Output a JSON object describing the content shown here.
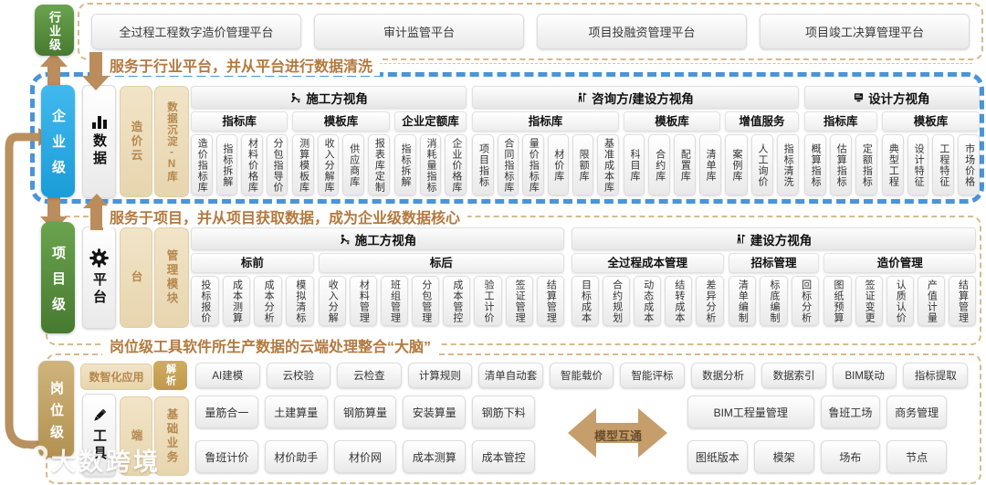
{
  "industry": {
    "label": "行业级",
    "platforms": [
      "全过程工程数字造价管理平台",
      "审计监管平台",
      "项目投融资管理平台",
      "项目竣工决算管理平台"
    ]
  },
  "notes": {
    "note1": "服务于行业平台，并从平台进行数据清洗",
    "note2": "服务于项目，并从项目获取数据，成为企业级数据核心",
    "note3": "岗位级工具软件所生产数据的云端处理整合“大脑”"
  },
  "enterprise": {
    "label": "企业级",
    "core": "数据",
    "core_icon": "bar-chart-icon",
    "columns": [
      "造价云",
      "数据沉淀-N库"
    ],
    "groups": [
      {
        "title": "施工方视角",
        "icon": "worker-icon",
        "subgroups": [
          {
            "title": "指标库",
            "items": [
              "造价指标库",
              "指标拆解",
              "材料价格库",
              "分包指导价"
            ]
          },
          {
            "title": "模板库",
            "items": [
              "测算模板库",
              "收入分解库",
              "供应商库",
              "报表库定制"
            ]
          },
          {
            "title": "企业定额库",
            "items": [
              "指标拆解",
              "消耗量指标",
              "企业价格库"
            ]
          }
        ]
      },
      {
        "title": "咨询方/建设方视角",
        "icon": "flag-icon",
        "subgroups": [
          {
            "title": "指标库",
            "items": [
              "项目指标",
              "合同指标库",
              "量价指标库",
              "材价库",
              "限额库",
              "基准成本库"
            ]
          },
          {
            "title": "模板库",
            "items": [
              "科目库",
              "合约库",
              "配置库",
              "清单库"
            ]
          },
          {
            "title": "增值服务",
            "items": [
              "案例库",
              "人工询价",
              "指标清洗"
            ]
          }
        ]
      },
      {
        "title": "设计方视角",
        "icon": "design-icon",
        "subgroups": [
          {
            "title": "指标库",
            "items": [
              "概算指标",
              "估算指标",
              "定额指标"
            ]
          },
          {
            "title": "模板库",
            "items": [
              "典型工程",
              "设计特征",
              "工程特征",
              "市场价格"
            ]
          }
        ]
      }
    ]
  },
  "project": {
    "label": "项目级",
    "core": "平台",
    "core_icon": "gear-icon",
    "columns": [
      "台",
      "管理模块"
    ],
    "groups": [
      {
        "title": "施工方视角",
        "icon": "worker-icon",
        "subgroups": [
          {
            "title": "标前",
            "items": [
              "投标报价",
              "成本测算",
              "成本分析",
              "模拟清标"
            ]
          },
          {
            "title": "标后",
            "items": [
              "收入分解",
              "材料管理",
              "班组管理",
              "分包管理",
              "成本管控",
              "验工计价",
              "签证管理",
              "结算管理"
            ]
          }
        ]
      },
      {
        "title": "建设方视角",
        "icon": "flag-icon",
        "subgroups": [
          {
            "title": "全过程成本管理",
            "items": [
              "目标成本",
              "合约规划",
              "动态成本",
              "结转成本",
              "差异分析"
            ]
          },
          {
            "title": "招标管理",
            "items": [
              "清单编制",
              "标底编制",
              "回标分析"
            ]
          },
          {
            "title": "造价管理",
            "items": [
              "图纸预算",
              "签证变更",
              "认质认价",
              "产值计量",
              "结算管理"
            ]
          }
        ]
      }
    ]
  },
  "position": {
    "label": "岗位级",
    "core": "工具",
    "core_icon": "pencil-icon",
    "columns": [
      "端",
      "基础业务"
    ],
    "smart_app_label": "数智化应用",
    "parse_label": "解析",
    "smart_apps": [
      "AI建模",
      "云校验",
      "云检查",
      "计算规则",
      "清单自动套",
      "智能载价",
      "智能评标",
      "数据分析",
      "数据索引",
      "BIM联动",
      "指标提取"
    ],
    "tools_left": [
      [
        "量筋合一",
        "土建算量",
        "钢筋算量",
        "安装算量",
        "钢筋下料"
      ],
      [
        "鲁班计价",
        "材价助手",
        "材价网",
        "成本测算",
        "成本管控"
      ]
    ],
    "arrow_label": "模型互通",
    "tools_right_row1": [
      "BIM工程量管理",
      "鲁班工场",
      "商务管理"
    ],
    "tools_right_row2": [
      "图纸版本",
      "模架",
      "场布",
      "节点"
    ]
  },
  "watermark": {
    "text": "大数跨境"
  },
  "colors": {
    "industry_green": "#4f8c3a",
    "enterprise_blue": "#29a9e1",
    "position_tan": "#c0a165",
    "note_orange": "#b3793e",
    "arrow_tan": "#bb8d5c",
    "blue_dash_border": "#4b94d8",
    "tan_dash_border": "#d8b98c",
    "tan_fill": "#ecdcbc"
  }
}
